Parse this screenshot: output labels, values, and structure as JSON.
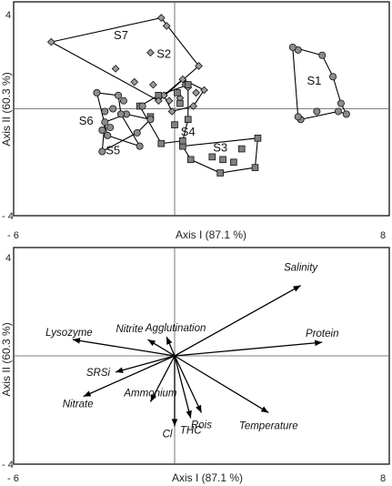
{
  "chart_data": [
    {
      "type": "scatter",
      "xlabel": "Axis I (87.1 %)",
      "ylabel": "Axis II (60.3 %)",
      "xlim": [
        -6,
        8
      ],
      "ylim": [
        -4,
        4
      ],
      "x_tick_labels": [
        "- 6",
        "8"
      ],
      "y_tick_labels": [
        "4",
        "- 4"
      ],
      "groups": [
        {
          "name": "S1",
          "marker": "circle",
          "points": [
            [
              4.6,
              2.2
            ],
            [
              5.9,
              1.2
            ],
            [
              6.2,
              0.2
            ],
            [
              6.4,
              -0.2
            ],
            [
              6.1,
              -0.1
            ],
            [
              5.3,
              -0.1
            ],
            [
              4.7,
              -0.4
            ],
            [
              4.6,
              -0.3
            ],
            [
              4.4,
              2.3
            ],
            [
              5.5,
              2.0
            ]
          ],
          "hull": [
            [
              4.4,
              2.3
            ],
            [
              5.5,
              2.0
            ],
            [
              5.9,
              1.2
            ],
            [
              6.2,
              0.2
            ],
            [
              6.4,
              -0.2
            ],
            [
              6.1,
              -0.1
            ],
            [
              4.7,
              -0.4
            ],
            [
              4.6,
              -0.3
            ],
            [
              4.4,
              2.3
            ]
          ]
        },
        {
          "name": "S2",
          "marker": "diamond",
          "points": [
            [
              0.4,
              0.9
            ],
            [
              0.2,
              0.4
            ],
            [
              -0.2,
              0.3
            ],
            [
              0.8,
              0.6
            ],
            [
              1.1,
              0.7
            ],
            [
              0.7,
              0.1
            ],
            [
              -0.4,
              0.5
            ],
            [
              0.3,
              1.1
            ],
            [
              -0.1,
              -0.1
            ],
            [
              0.5,
              0.8
            ]
          ],
          "hull": [
            [
              -0.4,
              0.5
            ],
            [
              0.3,
              1.1
            ],
            [
              1.1,
              0.7
            ],
            [
              0.7,
              0.1
            ],
            [
              -0.1,
              -0.1
            ],
            [
              -0.4,
              0.5
            ]
          ]
        },
        {
          "name": "S3",
          "marker": "square",
          "points": [
            [
              1.8,
              -1.9
            ],
            [
              3.1,
              -1.1
            ],
            [
              2.5,
              -1.5
            ],
            [
              1.4,
              -1.8
            ],
            [
              0.6,
              -1.9
            ],
            [
              1.7,
              -2.4
            ],
            [
              3.0,
              -2.2
            ],
            [
              2.2,
              -2.0
            ],
            [
              0.3,
              -1.4
            ]
          ],
          "hull": [
            [
              0.3,
              -1.4
            ],
            [
              3.1,
              -1.1
            ],
            [
              3.0,
              -2.2
            ],
            [
              1.7,
              -2.4
            ],
            [
              0.6,
              -1.9
            ],
            [
              0.3,
              -1.4
            ]
          ]
        },
        {
          "name": "S4",
          "marker": "square",
          "points": [
            [
              0.1,
              0.6
            ],
            [
              -0.6,
              0.5
            ],
            [
              0.5,
              -0.4
            ],
            [
              0.3,
              -1.2
            ],
            [
              0.5,
              0.9
            ],
            [
              -1.3,
              0.1
            ],
            [
              -0.9,
              -0.3
            ],
            [
              0.0,
              -0.6
            ],
            [
              -0.5,
              -1.3
            ],
            [
              0.2,
              0.2
            ]
          ],
          "hull": [
            [
              -1.3,
              0.1
            ],
            [
              -0.6,
              0.5
            ],
            [
              0.5,
              0.9
            ],
            [
              0.5,
              -0.4
            ],
            [
              0.3,
              -1.2
            ],
            [
              -0.5,
              -1.3
            ],
            [
              -1.3,
              0.1
            ]
          ]
        },
        {
          "name": "S5",
          "marker": "circle",
          "points": [
            [
              -1.2,
              0.1
            ],
            [
              -1.8,
              -0.2
            ],
            [
              -2.6,
              -0.5
            ],
            [
              -2.4,
              -0.7
            ],
            [
              -1.4,
              -0.9
            ],
            [
              -0.9,
              -0.4
            ],
            [
              -2.7,
              -1.6
            ],
            [
              -1.9,
              0.3
            ]
          ],
          "hull": [
            [
              -2.6,
              -0.5
            ],
            [
              -1.8,
              -0.2
            ],
            [
              -0.9,
              -0.4
            ],
            [
              -1.4,
              -0.9
            ],
            [
              -2.7,
              -1.6
            ],
            [
              -2.6,
              -0.5
            ]
          ]
        },
        {
          "name": "S6",
          "marker": "circle",
          "points": [
            [
              -2.9,
              0.6
            ],
            [
              -2.1,
              0.5
            ],
            [
              -2.3,
              0.0
            ],
            [
              -2.0,
              -0.2
            ],
            [
              -2.7,
              -0.8
            ],
            [
              -2.5,
              -1.0
            ],
            [
              -1.3,
              -1.4
            ],
            [
              -2.6,
              -0.1
            ]
          ],
          "hull": [
            [
              -2.9,
              0.6
            ],
            [
              -2.1,
              0.5
            ],
            [
              -2.0,
              -0.2
            ],
            [
              -1.3,
              -1.4
            ],
            [
              -2.5,
              -1.0
            ],
            [
              -2.9,
              0.6
            ]
          ]
        },
        {
          "name": "S7",
          "marker": "diamond",
          "points": [
            [
              -4.6,
              2.5
            ],
            [
              -0.5,
              3.4
            ],
            [
              -2.2,
              1.5
            ],
            [
              0.9,
              1.6
            ],
            [
              -0.8,
              0.9
            ],
            [
              -0.3,
              3.1
            ],
            [
              -1.5,
              1.0
            ],
            [
              -0.9,
              2.1
            ],
            [
              -0.6,
              0.3
            ]
          ],
          "hull": [
            [
              -4.6,
              2.5
            ],
            [
              -0.5,
              3.4
            ],
            [
              0.9,
              1.6
            ],
            [
              -0.6,
              0.3
            ],
            [
              -4.6,
              2.5
            ]
          ]
        }
      ]
    },
    {
      "type": "biplot-vectors",
      "xlabel": "Axis I (87.1 %)",
      "ylabel": "Axis II (60.3 %)",
      "xlim": [
        -6,
        8
      ],
      "ylim": [
        -4,
        4
      ],
      "x_tick_labels": [
        "- 6",
        "8"
      ],
      "y_tick_labels": [
        "4",
        "- 4"
      ],
      "vectors": [
        {
          "label": "Salinity",
          "x": 4.7,
          "y": 2.6
        },
        {
          "label": "Protein",
          "x": 5.5,
          "y": 0.5
        },
        {
          "label": "Temperature",
          "x": 3.5,
          "y": -2.1
        },
        {
          "label": "Rois",
          "x": 1.0,
          "y": -2.1
        },
        {
          "label": "THC",
          "x": 0.6,
          "y": -2.3
        },
        {
          "label": "Cl",
          "x": 0.0,
          "y": -2.6
        },
        {
          "label": "Ammonium",
          "x": -0.9,
          "y": -1.7
        },
        {
          "label": "Nitrate",
          "x": -3.4,
          "y": -1.5
        },
        {
          "label": "SRSi",
          "x": -2.2,
          "y": -0.6
        },
        {
          "label": "Lysozyme",
          "x": -3.8,
          "y": 0.6
        },
        {
          "label": "Nitrite",
          "x": -1.0,
          "y": 0.6
        },
        {
          "label": "Agglutination",
          "x": -0.3,
          "y": 0.7
        }
      ]
    }
  ]
}
